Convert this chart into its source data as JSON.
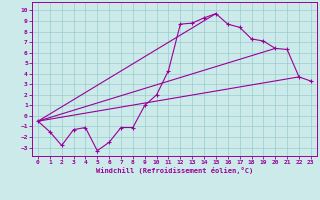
{
  "xlabel": "Windchill (Refroidissement éolien,°C)",
  "xlim": [
    -0.5,
    23.5
  ],
  "ylim": [
    -3.8,
    10.8
  ],
  "xticks": [
    0,
    1,
    2,
    3,
    4,
    5,
    6,
    7,
    8,
    9,
    10,
    11,
    12,
    13,
    14,
    15,
    16,
    17,
    18,
    19,
    20,
    21,
    22,
    23
  ],
  "yticks": [
    -3,
    -2,
    -1,
    0,
    1,
    2,
    3,
    4,
    5,
    6,
    7,
    8,
    9,
    10
  ],
  "background_color": "#cceaea",
  "grid_color": "#99cccc",
  "line_color": "#990099",
  "curve1_x": [
    0,
    1,
    2,
    3,
    4,
    5,
    6,
    7,
    8,
    9,
    10,
    11,
    12,
    13,
    14,
    15,
    16,
    17,
    18,
    19,
    20,
    21,
    22,
    23
  ],
  "curve1_y": [
    -0.5,
    -1.5,
    -2.8,
    -1.3,
    -1.1,
    -3.3,
    -2.5,
    -1.1,
    -1.1,
    1.0,
    2.0,
    4.3,
    8.7,
    8.8,
    9.3,
    9.7,
    8.7,
    8.4,
    7.3,
    7.1,
    6.4,
    6.3,
    3.7,
    3.3
  ],
  "line1_x": [
    0,
    22
  ],
  "line1_y": [
    -0.5,
    3.7
  ],
  "line2_x": [
    0,
    20
  ],
  "line2_y": [
    -0.5,
    6.4
  ],
  "line3_x": [
    0,
    15
  ],
  "line3_y": [
    -0.5,
    9.7
  ]
}
